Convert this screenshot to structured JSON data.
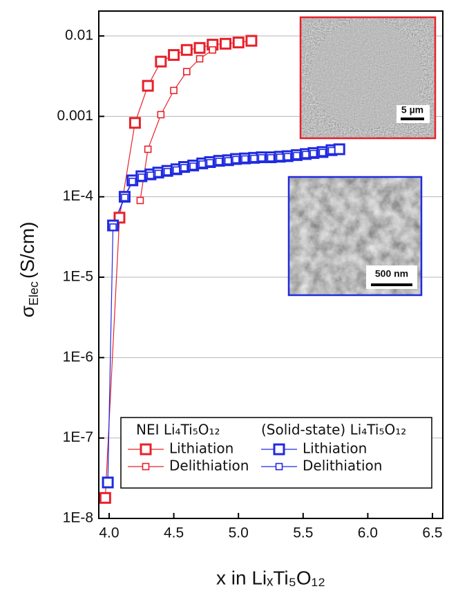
{
  "chart_data": {
    "type": "scatter",
    "x_label": "x in LiₓTi₅O₁₂",
    "y_label": {
      "symbol": "σ",
      "subscript": "Elec",
      "unit": "(S/cm)"
    },
    "log_y": true,
    "grid": true,
    "xlim": [
      3.92,
      6.58
    ],
    "ylim": [
      1e-08,
      0.0204
    ],
    "xticks": [
      {
        "value": 4,
        "label": "4.0"
      },
      4.5,
      {
        "value": 5,
        "label": "5.0"
      },
      5.5,
      {
        "value": 6,
        "label": "6.0"
      },
      6.5
    ],
    "yticks": [
      {
        "value": 1e-08,
        "label": "1E-8"
      },
      {
        "value": 1e-07,
        "label": "1E-7"
      },
      {
        "value": 1e-06,
        "label": "1E-6"
      },
      {
        "value": 1e-05,
        "label": "1E-5"
      },
      {
        "value": 0.0001,
        "label": "1E-4"
      },
      0.001,
      0.01
    ],
    "legend_titles": [
      "NEI Li₄Ti₅O₁₂",
      "(Solid-state) Li₄Ti₅O₁₂"
    ],
    "series": [
      {
        "name": "Lithiation",
        "color": "#e8202a",
        "marker": "large",
        "x": [
          3.97,
          4.08,
          4.2,
          4.3,
          4.4,
          4.5,
          4.6,
          4.7,
          4.8,
          4.9,
          5.0,
          5.1
        ],
        "values": [
          1.8e-08,
          5.5e-05,
          0.00083,
          0.0024,
          0.0048,
          0.0058,
          0.0067,
          0.0071,
          0.0078,
          0.008,
          0.0083,
          0.0087
        ]
      },
      {
        "name": "Delithiation",
        "color": "#e8202a",
        "marker": "small",
        "x": [
          4.24,
          4.3,
          4.4,
          4.5,
          4.6,
          4.7,
          4.8
        ],
        "values": [
          9e-05,
          0.00039,
          0.00105,
          0.0021,
          0.0036,
          0.0052,
          0.0067
        ]
      },
      {
        "name": "Lithiation",
        "color": "#1f2adf",
        "marker": "large",
        "x": [
          3.99,
          4.03,
          4.12,
          4.18,
          4.25,
          4.32,
          4.38,
          4.45,
          4.52,
          4.58,
          4.65,
          4.72,
          4.78,
          4.85,
          4.92,
          4.98,
          5.05,
          5.12,
          5.18,
          5.25,
          5.32,
          5.38,
          5.45,
          5.52,
          5.58,
          5.65,
          5.72,
          5.78
        ],
        "values": [
          2.8e-08,
          4.4e-05,
          0.0001,
          0.00016,
          0.00018,
          0.00019,
          0.0002,
          0.00021,
          0.00022,
          0.000235,
          0.000245,
          0.00026,
          0.00027,
          0.00028,
          0.000285,
          0.000295,
          0.0003,
          0.000305,
          0.00031,
          0.00031,
          0.000315,
          0.00032,
          0.00033,
          0.00034,
          0.00035,
          0.00036,
          0.00038,
          0.00039
        ]
      },
      {
        "name": "Delithiation",
        "color": "#1f2adf",
        "marker": "small",
        "x": [
          4.03,
          4.12,
          4.18,
          4.25,
          4.32,
          4.38,
          4.45,
          4.52,
          4.58,
          4.65,
          4.72,
          4.78,
          4.85,
          4.92,
          4.98,
          5.05,
          5.12,
          5.18,
          5.25,
          5.32,
          5.38,
          5.45,
          5.52,
          5.58,
          5.65,
          5.72
        ],
        "values": [
          4.2e-05,
          9.8e-05,
          0.000155,
          0.000175,
          0.000185,
          0.000195,
          0.000205,
          0.000215,
          0.00023,
          0.00024,
          0.000255,
          0.000265,
          0.000275,
          0.00028,
          0.00029,
          0.000295,
          0.0003,
          0.000305,
          0.000305,
          0.00031,
          0.000315,
          0.000325,
          0.000335,
          0.000345,
          0.000355,
          0.000375
        ]
      }
    ],
    "annotations": [
      "5 µm",
      "500 nm"
    ]
  }
}
